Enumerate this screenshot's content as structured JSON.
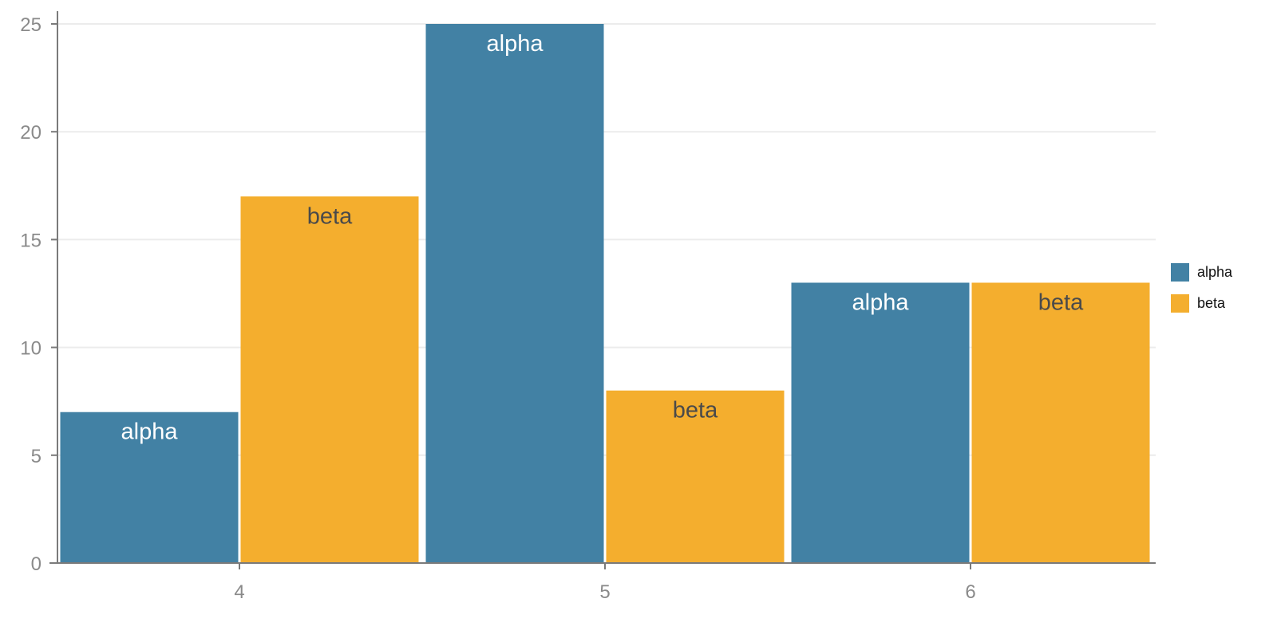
{
  "chart_data": {
    "type": "bar",
    "categories": [
      "4",
      "5",
      "6"
    ],
    "series": [
      {
        "name": "alpha",
        "values": [
          7,
          25,
          13
        ],
        "color": "#4281a4"
      },
      {
        "name": "beta",
        "values": [
          17,
          8,
          13
        ],
        "color": "#f4ae2e"
      }
    ],
    "title": "",
    "xlabel": "",
    "ylabel": "",
    "ylim": [
      0,
      25
    ],
    "yticks": [
      0,
      5,
      10,
      15,
      20,
      25
    ],
    "grid": true,
    "legend": "right",
    "bar_labels": "series-name"
  }
}
